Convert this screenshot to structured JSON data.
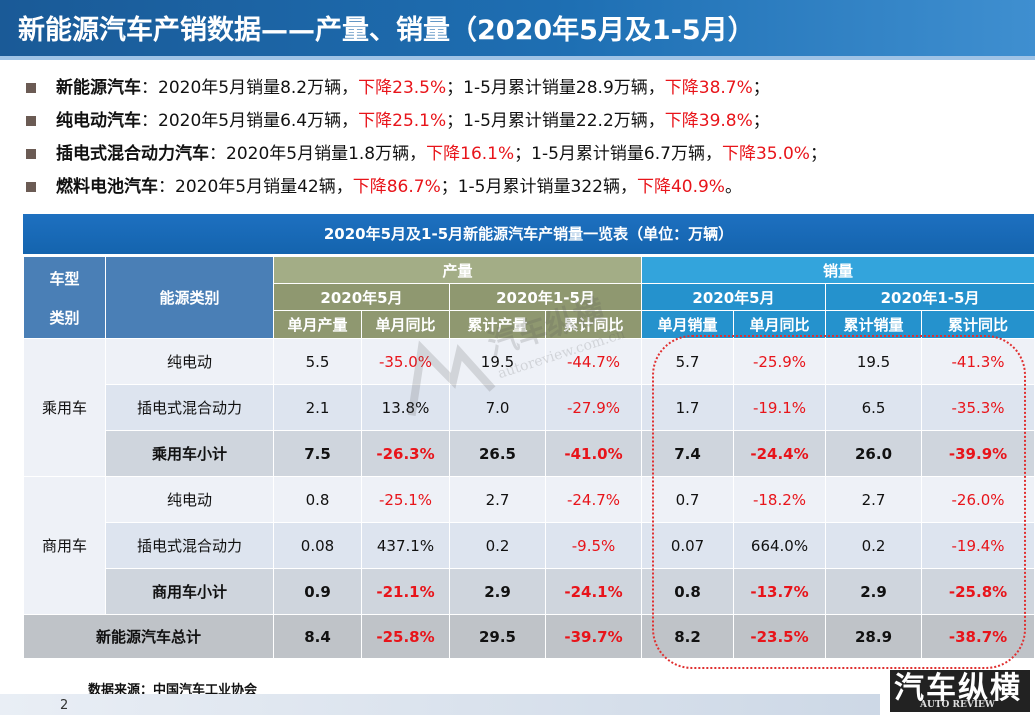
{
  "title": "新能源汽车产销数据——产量、销量（2020年5月及1-5月）",
  "bullets": [
    {
      "label": "新能源汽车",
      "p1": "：2020年5月销量8.2万辆，",
      "d1": "下降23.5%",
      "p2": "；1-5月累计销量28.9万辆，",
      "d2": "下降38.7%",
      "end": "；"
    },
    {
      "label": "纯电动汽车",
      "p1": "：2020年5月销量6.4万辆，",
      "d1": "下降25.1%",
      "p2": "；1-5月累计销量22.2万辆，",
      "d2": "下降39.8%",
      "end": "；"
    },
    {
      "label": "插电式混合动力汽车",
      "p1": "：2020年5月销量1.8万辆，",
      "d1": "下降16.1%",
      "p2": "；1-5月累计销量6.7万辆，",
      "d2": "下降35.0%",
      "end": "；"
    },
    {
      "label": "燃料电池汽车",
      "p1": "：2020年5月销量42辆，",
      "d1": "下降86.7%",
      "p2": "；1-5月累计销量322辆，",
      "d2": "下降40.9%",
      "end": "。"
    }
  ],
  "table": {
    "title": "2020年5月及1-5月新能源汽车产销量一览表（单位：万辆）",
    "h_type": "车型\n类别",
    "h_type_1": "车型",
    "h_type_2": "类别",
    "h_energy": "能源类别",
    "h_prod": "产量",
    "h_sales": "销量",
    "h_may": "2020年5月",
    "h_ytd": "2020年1-5月",
    "sub": [
      "单月产量",
      "单月同比",
      "累计产量",
      "累计同比",
      "单月销量",
      "单月同比",
      "累计销量",
      "累计同比"
    ],
    "cat_passenger": "乘用车",
    "cat_commercial": "商用车",
    "rows": [
      {
        "label": "纯电动",
        "v": [
          "5.5",
          "-35.0%",
          "19.5",
          "-44.7%",
          "5.7",
          "-25.9%",
          "19.5",
          "-41.3%"
        ]
      },
      {
        "label": "插电式混合动力",
        "v": [
          "2.1",
          "13.8%",
          "7.0",
          "-27.9%",
          "1.7",
          "-19.1%",
          "6.5",
          "-35.3%"
        ]
      },
      {
        "label": "乘用车小计",
        "v": [
          "7.5",
          "-26.3%",
          "26.5",
          "-41.0%",
          "7.4",
          "-24.4%",
          "26.0",
          "-39.9%"
        ]
      },
      {
        "label": "纯电动",
        "v": [
          "0.8",
          "-25.1%",
          "2.7",
          "-24.7%",
          "0.7",
          "-18.2%",
          "2.7",
          "-26.0%"
        ]
      },
      {
        "label": "插电式混合动力",
        "v": [
          "0.08",
          "437.1%",
          "0.2",
          "-9.5%",
          "0.07",
          "664.0%",
          "0.2",
          "-19.4%"
        ]
      },
      {
        "label": "商用车小计",
        "v": [
          "0.9",
          "-21.1%",
          "2.9",
          "-24.1%",
          "0.8",
          "-13.7%",
          "2.9",
          "-25.8%"
        ]
      },
      {
        "label": "新能源汽车总计",
        "v": [
          "8.4",
          "-25.8%",
          "29.5",
          "-39.7%",
          "8.2",
          "-23.5%",
          "28.9",
          "-38.7%"
        ]
      }
    ]
  },
  "source": "数据来源：中国汽车工业协会",
  "page_number": "2",
  "watermark": {
    "cn": "汽车纵横",
    "en": "autoreview.com.cn"
  },
  "logo": {
    "cn": "汽车纵横",
    "en": "AUTO REVIEW"
  },
  "colors": {
    "accent": "#1e6fb3",
    "negative": "#e8141a",
    "prod_header": "#a3ad86",
    "sales_header": "#33a4dc"
  }
}
